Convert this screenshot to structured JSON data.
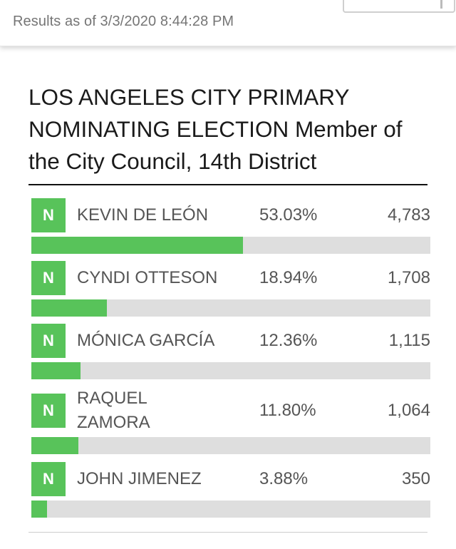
{
  "header": {
    "timestamp": "Results as of 3/3/2020 8:44:28 PM"
  },
  "contest": {
    "title": "LOS ANGELES CITY PRIMARY NOMINATING ELECTION Member of the City Council, 14th District"
  },
  "colors": {
    "accent_green": "#58c35a",
    "bar_track": "#dedede"
  },
  "candidates": [
    {
      "badge": "N",
      "name": "KEVIN DE LEÓN",
      "percent_label": "53.03%",
      "votes": "4,783",
      "share": 0.5303
    },
    {
      "badge": "N",
      "name": "CYNDI OTTESON",
      "percent_label": "18.94%",
      "votes": "1,708",
      "share": 0.1894
    },
    {
      "badge": "N",
      "name": "MÓNICA GARCÍA",
      "percent_label": "12.36%",
      "votes": "1,115",
      "share": 0.1236
    },
    {
      "badge": "N",
      "name": "RAQUEL ZAMORA",
      "percent_label": "11.80%",
      "votes": "1,064",
      "share": 0.118
    },
    {
      "badge": "N",
      "name": "JOHN JIMENEZ",
      "percent_label": "3.88%",
      "votes": "350",
      "share": 0.0388
    }
  ]
}
